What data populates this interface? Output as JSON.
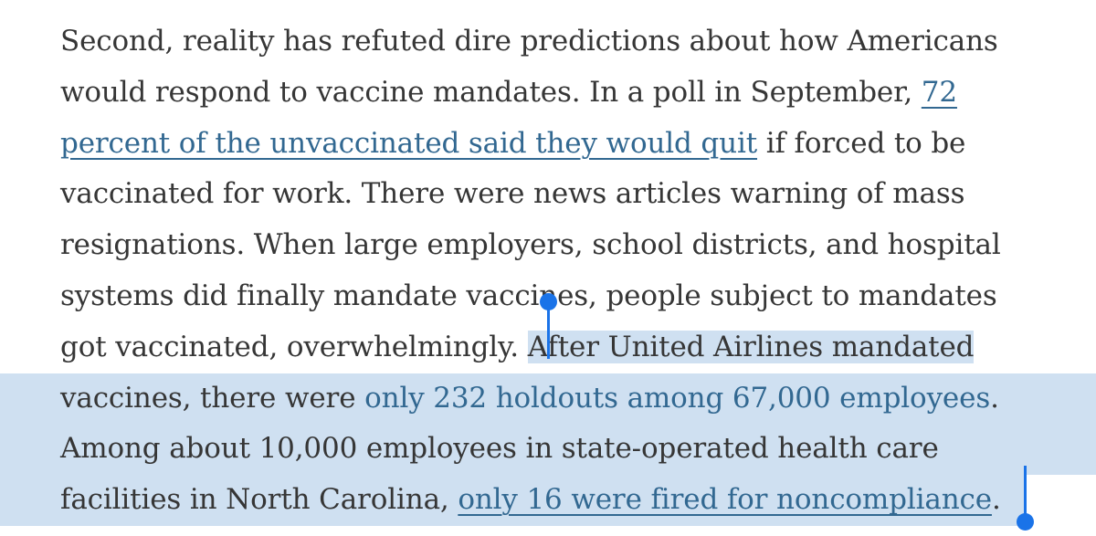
{
  "article": {
    "l1": "Second, reality has refuted dire predictions about how Americans",
    "l2_text": "would respond to vaccine mandates. In a poll in September, ",
    "l2_link": "72",
    "l3_link": "percent of the unvaccinated said they would quit",
    "l3_text": " if forced to be",
    "l4": "vaccinated for work. There were news articles warning of mass",
    "l5": "resignations. When large employers, school districts, and hospital",
    "l6": "systems did finally mandate vaccines, people subject to mandates",
    "l7_text": "got vaccinated, overwhelmingly. ",
    "l7_sel": "After United Airlines mandated",
    "l8_text": "vaccines, there were ",
    "l8_link": "only 232 holdouts among 67,000 employees",
    "l8_end": ".",
    "l9": "Among about 10,000 employees in state-operated health care",
    "l10_text": "facilities in North Carolina, ",
    "l10_link": "only 16 were fired for noncompliance",
    "l10_end": "."
  },
  "colors": {
    "text": "#363636",
    "link": "#326891",
    "selection": "#cfe0f1",
    "handle": "#1a73e8"
  }
}
